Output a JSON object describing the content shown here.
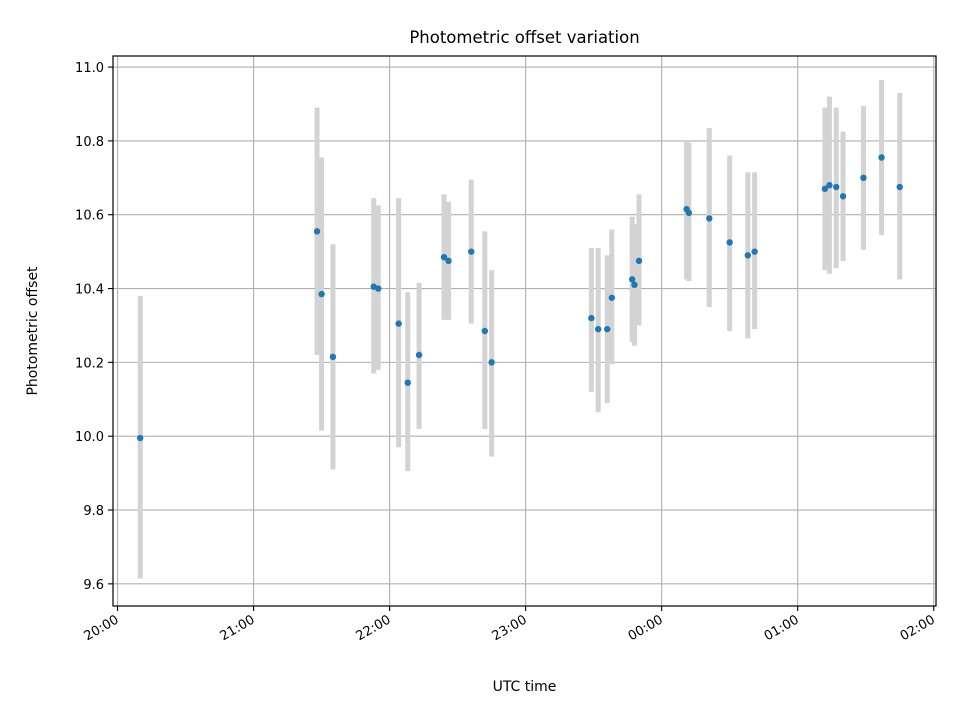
{
  "chart_data": {
    "type": "scatter",
    "title": "Photometric offset variation",
    "xlabel": "UTC time",
    "ylabel": "Photometric offset",
    "x_ticks": [
      "20:00",
      "21:00",
      "22:00",
      "23:00",
      "00:00",
      "01:00",
      "02:00"
    ],
    "y_ticks": [
      "9.6",
      "9.8",
      "10.0",
      "10.2",
      "10.4",
      "10.6",
      "10.8",
      "11.0"
    ],
    "xlim": [
      "19:58",
      "02:01"
    ],
    "ylim": [
      9.54,
      11.03
    ],
    "grid": true,
    "errorbar_color": "#d3d3d3",
    "point_color": "#1f77b4",
    "series": [
      {
        "points": [
          {
            "t": "20:10",
            "y": 9.995,
            "lo": 9.615,
            "hi": 10.38
          },
          {
            "t": "21:28",
            "y": 10.555,
            "lo": 10.22,
            "hi": 10.89
          },
          {
            "t": "21:30",
            "y": 10.385,
            "lo": 10.015,
            "hi": 10.755
          },
          {
            "t": "21:35",
            "y": 10.215,
            "lo": 9.91,
            "hi": 10.52
          },
          {
            "t": "21:53",
            "y": 10.405,
            "lo": 10.17,
            "hi": 10.645
          },
          {
            "t": "21:55",
            "y": 10.4,
            "lo": 10.18,
            "hi": 10.625
          },
          {
            "t": "22:04",
            "y": 10.305,
            "lo": 9.97,
            "hi": 10.645
          },
          {
            "t": "22:08",
            "y": 10.145,
            "lo": 9.905,
            "hi": 10.39
          },
          {
            "t": "22:13",
            "y": 10.22,
            "lo": 10.02,
            "hi": 10.415
          },
          {
            "t": "22:24",
            "y": 10.485,
            "lo": 10.315,
            "hi": 10.655
          },
          {
            "t": "22:26",
            "y": 10.475,
            "lo": 10.315,
            "hi": 10.635
          },
          {
            "t": "22:36",
            "y": 10.5,
            "lo": 10.305,
            "hi": 10.695
          },
          {
            "t": "22:42",
            "y": 10.285,
            "lo": 10.02,
            "hi": 10.555
          },
          {
            "t": "22:45",
            "y": 10.2,
            "lo": 9.945,
            "hi": 10.45
          },
          {
            "t": "23:29",
            "y": 10.32,
            "lo": 10.12,
            "hi": 10.51
          },
          {
            "t": "23:32",
            "y": 10.29,
            "lo": 10.065,
            "hi": 10.51
          },
          {
            "t": "23:36",
            "y": 10.29,
            "lo": 10.09,
            "hi": 10.49
          },
          {
            "t": "23:38",
            "y": 10.375,
            "lo": 10.195,
            "hi": 10.56
          },
          {
            "t": "23:47",
            "y": 10.425,
            "lo": 10.255,
            "hi": 10.595
          },
          {
            "t": "23:48",
            "y": 10.41,
            "lo": 10.245,
            "hi": 10.575
          },
          {
            "t": "23:50",
            "y": 10.475,
            "lo": 10.3,
            "hi": 10.655
          },
          {
            "t": "00:11",
            "y": 10.615,
            "lo": 10.425,
            "hi": 10.8
          },
          {
            "t": "00:12",
            "y": 10.605,
            "lo": 10.42,
            "hi": 10.795
          },
          {
            "t": "00:21",
            "y": 10.59,
            "lo": 10.35,
            "hi": 10.835
          },
          {
            "t": "00:30",
            "y": 10.525,
            "lo": 10.285,
            "hi": 10.76
          },
          {
            "t": "00:38",
            "y": 10.49,
            "lo": 10.265,
            "hi": 10.715
          },
          {
            "t": "00:41",
            "y": 10.5,
            "lo": 10.29,
            "hi": 10.715
          },
          {
            "t": "01:12",
            "y": 10.67,
            "lo": 10.45,
            "hi": 10.89
          },
          {
            "t": "01:14",
            "y": 10.68,
            "lo": 10.44,
            "hi": 10.92
          },
          {
            "t": "01:17",
            "y": 10.675,
            "lo": 10.455,
            "hi": 10.89
          },
          {
            "t": "01:20",
            "y": 10.65,
            "lo": 10.475,
            "hi": 10.825
          },
          {
            "t": "01:29",
            "y": 10.7,
            "lo": 10.505,
            "hi": 10.895
          },
          {
            "t": "01:37",
            "y": 10.755,
            "lo": 10.545,
            "hi": 10.965
          },
          {
            "t": "01:45",
            "y": 10.675,
            "lo": 10.425,
            "hi": 10.93
          }
        ]
      }
    ]
  }
}
